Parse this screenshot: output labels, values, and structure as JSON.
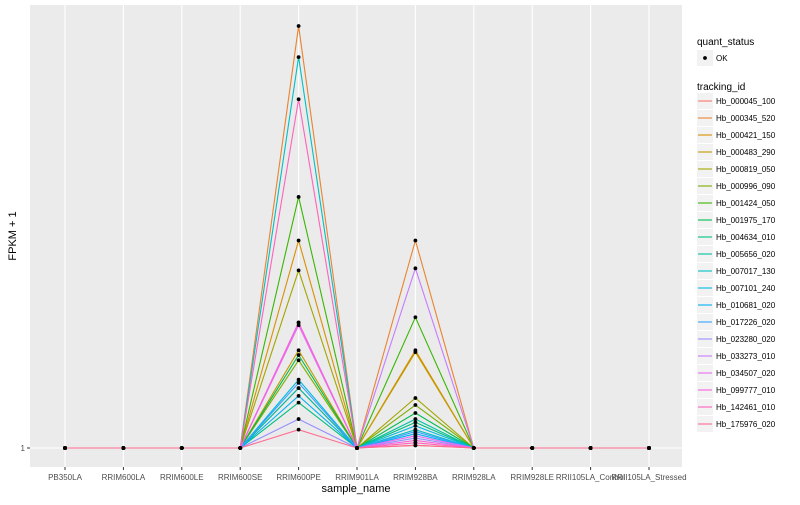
{
  "chart_data": {
    "type": "line",
    "xlabel": "sample_name",
    "ylabel": "FPKM + 1",
    "y_ticks": [
      1
    ],
    "y_scale": "log",
    "grid": true,
    "legend_position": "right",
    "categories": [
      "PB350LA",
      "RRIM600LA",
      "RRIM600LE",
      "RRIM600SE",
      "RRIM600PE",
      "RRIM901LA",
      "RRIM928BA",
      "RRIM928LA",
      "RRIM928LE",
      "RRII105LA_Control",
      "RRII105LA_Stressed"
    ],
    "quant_status_legend": {
      "title": "quant_status",
      "entries": [
        "OK"
      ]
    },
    "tracking_legend_title": "tracking_id",
    "y_range": [
      1,
      2300
    ],
    "series": [
      {
        "name": "Hb_000045_100",
        "color": "#F8766D",
        "values": [
          1,
          1,
          1,
          1,
          3,
          1,
          1.05,
          1,
          1,
          1,
          1
        ]
      },
      {
        "name": "Hb_000345_520",
        "color": "#EA8331",
        "values": [
          1,
          1,
          1,
          1,
          2300,
          1,
          45,
          1,
          1,
          1,
          1
        ]
      },
      {
        "name": "Hb_000421_150",
        "color": "#D89000",
        "values": [
          1,
          1,
          1,
          1,
          45,
          1,
          6,
          1,
          1,
          1,
          1
        ]
      },
      {
        "name": "Hb_000483_290",
        "color": "#C09B00",
        "values": [
          1,
          1,
          1,
          1,
          6,
          1,
          5.8,
          1,
          1,
          1,
          1
        ]
      },
      {
        "name": "Hb_000819_050",
        "color": "#A3A500",
        "values": [
          1,
          1,
          1,
          1,
          26,
          1,
          2.5,
          1,
          1,
          1,
          1
        ]
      },
      {
        "name": "Hb_000996_090",
        "color": "#7CAE00",
        "values": [
          1,
          1,
          1,
          1,
          5,
          1,
          2.2,
          1,
          1,
          1,
          1
        ]
      },
      {
        "name": "Hb_001424_050",
        "color": "#39B600",
        "values": [
          1,
          1,
          1,
          1,
          100,
          1,
          11,
          1,
          1,
          1,
          1
        ]
      },
      {
        "name": "Hb_001975_170",
        "color": "#00BB4E",
        "values": [
          1,
          1,
          1,
          1,
          5.5,
          1,
          1.9,
          1,
          1,
          1,
          1
        ]
      },
      {
        "name": "Hb_004634_010",
        "color": "#00BF7D",
        "values": [
          1,
          1,
          1,
          1,
          2.3,
          1,
          1.6,
          1,
          1,
          1,
          1
        ]
      },
      {
        "name": "Hb_005656_020",
        "color": "#00C1A3",
        "values": [
          1,
          1,
          1,
          1,
          3,
          1,
          1.7,
          1,
          1,
          1,
          1
        ]
      },
      {
        "name": "Hb_007017_130",
        "color": "#00BFC4",
        "values": [
          1,
          1,
          1,
          1,
          1300,
          1,
          1.4,
          1,
          1,
          1,
          1
        ]
      },
      {
        "name": "Hb_007101_240",
        "color": "#00BAE0",
        "values": [
          1,
          1,
          1,
          1,
          3.5,
          1,
          1.5,
          1,
          1,
          1,
          1
        ]
      },
      {
        "name": "Hb_010681_020",
        "color": "#00B0F6",
        "values": [
          1,
          1,
          1,
          1,
          2.6,
          1,
          1.3,
          1,
          1,
          1,
          1
        ]
      },
      {
        "name": "Hb_017226_020",
        "color": "#35A2FF",
        "values": [
          1,
          1,
          1,
          1,
          3.3,
          1,
          1.35,
          1,
          1,
          1,
          1
        ]
      },
      {
        "name": "Hb_023280_020",
        "color": "#9590FF",
        "values": [
          1,
          1,
          1,
          1,
          1.7,
          1,
          1.2,
          1,
          1,
          1,
          1
        ]
      },
      {
        "name": "Hb_033273_010",
        "color": "#C77CFF",
        "values": [
          1,
          1,
          1,
          1,
          10,
          1,
          27,
          1,
          1,
          1,
          1
        ]
      },
      {
        "name": "Hb_034507_020",
        "color": "#E76BF3",
        "values": [
          1,
          1,
          1,
          1,
          9.5,
          1,
          1.25,
          1,
          1,
          1,
          1
        ]
      },
      {
        "name": "Hb_099777_010",
        "color": "#FA62DB",
        "values": [
          1,
          1,
          1,
          1,
          10,
          1,
          1.15,
          1,
          1,
          1,
          1
        ]
      },
      {
        "name": "Hb_142461_010",
        "color": "#FF62BC",
        "values": [
          1,
          1,
          1,
          1,
          600,
          1,
          1.1,
          1,
          1,
          1,
          1
        ]
      },
      {
        "name": "Hb_175976_020",
        "color": "#FF6C91",
        "values": [
          1,
          1,
          1,
          1,
          1.4,
          1,
          1.05,
          1,
          1,
          1,
          1
        ]
      }
    ]
  }
}
